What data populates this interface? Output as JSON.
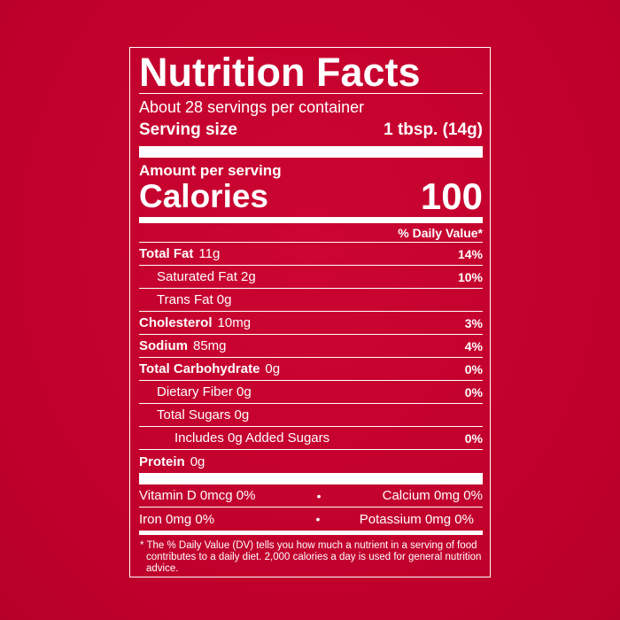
{
  "title": "Nutrition Facts",
  "servings": "About 28 servings per container",
  "serving_size": {
    "label": "Serving size",
    "value": "1 tbsp. (14g)"
  },
  "amount_per_serving": "Amount per serving",
  "calories": {
    "label": "Calories",
    "value": "100"
  },
  "dv_header": "% Daily Value*",
  "nutrients": [
    {
      "name": "Total Fat",
      "amount": "11g",
      "dv": "14%"
    },
    {
      "name": "Saturated Fat 2g",
      "amount": "",
      "dv": "10%"
    },
    {
      "name": "Trans Fat 0g",
      "amount": "",
      "dv": ""
    },
    {
      "name": "Cholesterol",
      "amount": "10mg",
      "dv": "3%"
    },
    {
      "name": "Sodium",
      "amount": "85mg",
      "dv": "4%"
    },
    {
      "name": "Total Carbohydrate",
      "amount": "0g",
      "dv": "0%"
    },
    {
      "name": "Dietary Fiber 0g",
      "amount": "",
      "dv": "0%"
    },
    {
      "name": "Total Sugars 0g",
      "amount": "",
      "dv": ""
    },
    {
      "name": "Includes 0g Added Sugars",
      "amount": "",
      "dv": "0%"
    },
    {
      "name": "Protein",
      "amount": "0g",
      "dv": ""
    }
  ],
  "vitamins": [
    {
      "left": "Vitamin D 0mcg 0%",
      "sep": "•",
      "right": "Calcium 0mg 0%"
    },
    {
      "left": "Iron 0mg 0%",
      "sep": "•",
      "right": "Potassium 0mg 0%"
    }
  ],
  "footnote": "* The % Daily Value (DV) tells you how much a nutrient in a serving of food contributes to a daily diet. 2,000 calories a day is used for general nutrition advice.",
  "colors": {
    "background": "#c5002e",
    "text": "#ffffff"
  }
}
